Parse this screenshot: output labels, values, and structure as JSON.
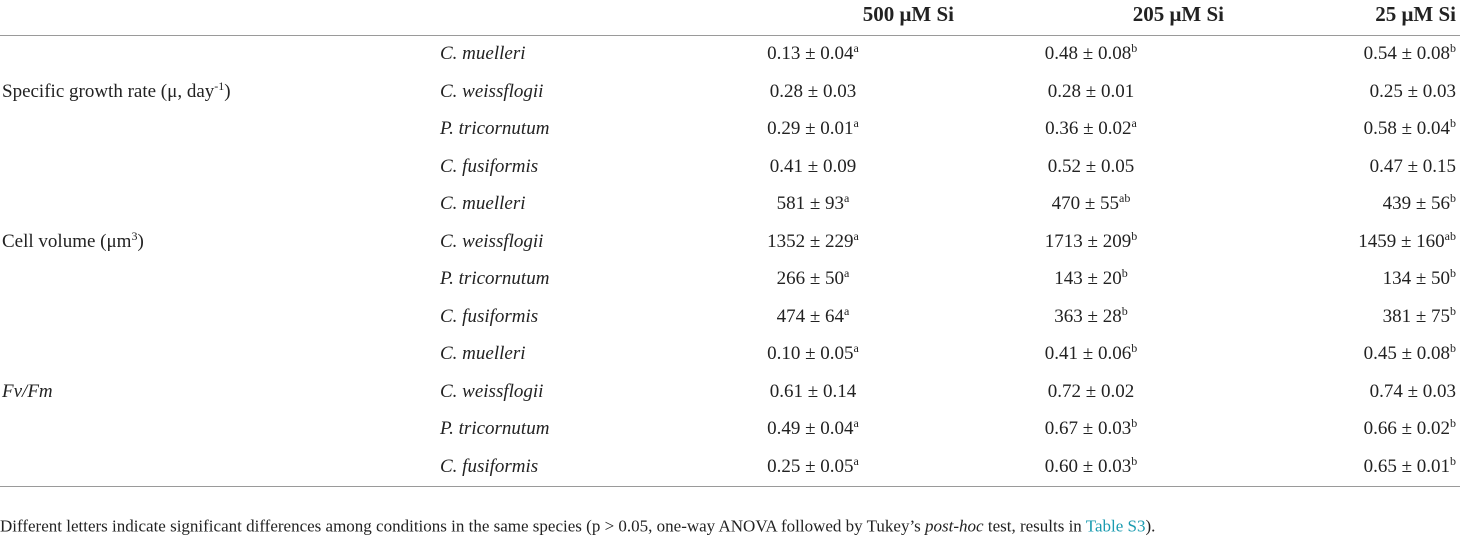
{
  "headers": {
    "parameter": "",
    "species": "",
    "c500": "500 μM Si",
    "c205": "205 μM Si",
    "c25": "25 μM Si"
  },
  "groups": [
    {
      "label_pre": "Specific growth rate (μ, day",
      "label_sup": "-1",
      "label_post": ")",
      "italic": false,
      "rows": [
        {
          "species": "C. muelleri",
          "v500": "0.13 ± 0.04",
          "s500": "a",
          "v205": "0.48 ± 0.08",
          "s205": "b",
          "v25": "0.54 ± 0.08",
          "s25": "b"
        },
        {
          "species": "C. weissflogii",
          "v500": "0.28 ± 0.03",
          "s500": "",
          "v205": "0.28 ± 0.01",
          "s205": "",
          "v25": "0.25 ± 0.03",
          "s25": ""
        },
        {
          "species": "P. tricornutum",
          "v500": "0.29 ± 0.01",
          "s500": "a",
          "v205": "0.36 ± 0.02",
          "s205": "a",
          "v25": "0.58 ± 0.04",
          "s25": "b"
        },
        {
          "species": "C. fusiformis",
          "v500": "0.41 ± 0.09",
          "s500": "",
          "v205": "0.52 ± 0.05",
          "s205": "",
          "v25": "0.47 ± 0.15",
          "s25": ""
        }
      ]
    },
    {
      "label_pre": "Cell volume (μm",
      "label_sup": "3",
      "label_post": ")",
      "italic": false,
      "rows": [
        {
          "species": "C. muelleri",
          "v500": "581 ± 93",
          "s500": "a",
          "v205": "470 ± 55",
          "s205": "ab",
          "v25": "439 ± 56",
          "s25": "b"
        },
        {
          "species": "C. weissflogii",
          "v500": "1352 ± 229",
          "s500": "a",
          "v205": "1713 ± 209",
          "s205": "b",
          "v25": "1459 ± 160",
          "s25": "ab"
        },
        {
          "species": "P. tricornutum",
          "v500": "266 ± 50",
          "s500": "a",
          "v205": "143 ± 20",
          "s205": "b",
          "v25": "134 ± 50",
          "s25": "b"
        },
        {
          "species": "C. fusiformis",
          "v500": "474 ± 64",
          "s500": "a",
          "v205": "363 ± 28",
          "s205": "b",
          "v25": "381 ± 75",
          "s25": "b"
        }
      ]
    },
    {
      "label_pre": "Fv/Fm",
      "label_sup": "",
      "label_post": "",
      "italic": true,
      "rows": [
        {
          "species": "C. muelleri",
          "v500": "0.10 ± 0.05",
          "s500": "a",
          "v205": "0.41 ± 0.06",
          "s205": "b",
          "v25": "0.45 ± 0.08",
          "s25": "b"
        },
        {
          "species": "C. weissflogii",
          "v500": "0.61 ± 0.14",
          "s500": "",
          "v205": "0.72 ± 0.02",
          "s205": "",
          "v25": "0.74 ± 0.03",
          "s25": ""
        },
        {
          "species": "P. tricornutum",
          "v500": "0.49 ± 0.04",
          "s500": "a",
          "v205": "0.67 ± 0.03",
          "s205": "b",
          "v25": "0.66 ± 0.02",
          "s25": "b"
        },
        {
          "species": "C. fusiformis",
          "v500": "0.25 ± 0.05",
          "s500": "a",
          "v205": "0.60 ± 0.03",
          "s205": "b",
          "v25": "0.65 ± 0.01",
          "s25": "b"
        }
      ]
    }
  ],
  "footnote": {
    "part1": "Different letters indicate significant differences among conditions in the same species (p > 0.05, one-way ANOVA followed by Tukey’s ",
    "italic": "post-hoc",
    "part2": " test, results in ",
    "link": "Table S3",
    "part3": ")."
  },
  "colors": {
    "text": "#222222",
    "rule": "#9a9a9a",
    "link": "#1a9bb0"
  }
}
